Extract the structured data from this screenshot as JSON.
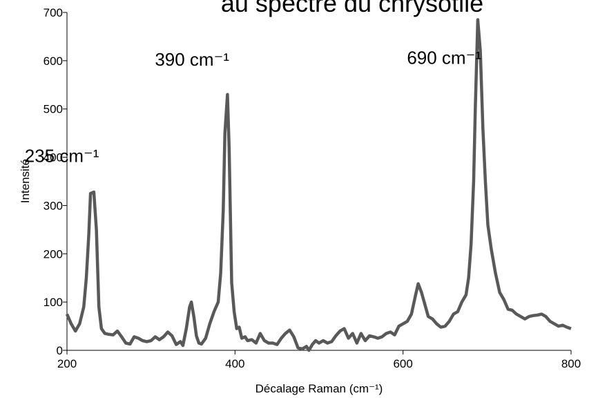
{
  "chart_data": {
    "type": "line",
    "title": "au spectre du chrysotile",
    "x_label": "Décalage Raman (cm⁻¹)",
    "y_label": "Intensité",
    "annotations": [
      {
        "text": "235 cm⁻¹",
        "x": 235,
        "y": 390
      },
      {
        "text": "390 cm⁻¹",
        "x": 390,
        "y": 590
      },
      {
        "text": "690 cm⁻¹",
        "x": 690,
        "y": 593
      }
    ],
    "xlim": [
      200,
      800
    ],
    "xticks": [
      200,
      400,
      600,
      800
    ],
    "ylim": [
      0,
      700
    ],
    "yticks": [
      0,
      100,
      200,
      300,
      400,
      500,
      600,
      700
    ],
    "x": [
      200,
      205,
      210,
      215,
      220,
      223,
      226,
      228,
      232,
      235,
      238,
      241,
      245,
      250,
      255,
      260,
      265,
      270,
      275,
      280,
      285,
      290,
      295,
      300,
      305,
      310,
      315,
      320,
      325,
      330,
      335,
      338,
      342,
      346,
      348,
      351,
      354,
      357,
      360,
      365,
      370,
      375,
      380,
      383,
      386,
      388,
      391,
      393,
      396,
      399,
      402,
      405,
      408,
      412,
      415,
      420,
      425,
      430,
      435,
      440,
      445,
      450,
      455,
      460,
      465,
      470,
      475,
      480,
      485,
      488,
      492,
      496,
      500,
      505,
      510,
      515,
      520,
      525,
      530,
      535,
      540,
      545,
      550,
      555,
      560,
      565,
      570,
      575,
      580,
      585,
      590,
      595,
      600,
      605,
      610,
      615,
      618,
      622,
      626,
      630,
      635,
      640,
      645,
      650,
      655,
      660,
      665,
      670,
      675,
      678,
      681,
      684,
      686,
      689,
      692,
      695,
      698,
      701,
      705,
      710,
      715,
      720,
      725,
      730,
      735,
      740,
      745,
      750,
      755,
      760,
      765,
      770,
      775,
      780,
      785,
      790,
      795,
      800
    ],
    "series": [
      {
        "name": "chrysotile",
        "color": "#595959",
        "values": [
          75,
          55,
          40,
          55,
          90,
          150,
          240,
          325,
          328,
          250,
          90,
          45,
          35,
          33,
          32,
          40,
          28,
          15,
          13,
          28,
          25,
          20,
          18,
          20,
          28,
          22,
          28,
          38,
          30,
          12,
          18,
          10,
          45,
          90,
          100,
          70,
          30,
          15,
          13,
          25,
          55,
          80,
          100,
          160,
          290,
          450,
          530,
          420,
          140,
          80,
          45,
          48,
          25,
          28,
          20,
          22,
          15,
          35,
          20,
          15,
          15,
          12,
          25,
          35,
          42,
          28,
          5,
          3,
          8,
          0,
          12,
          20,
          15,
          20,
          15,
          18,
          30,
          40,
          45,
          25,
          35,
          15,
          35,
          20,
          30,
          28,
          25,
          28,
          35,
          38,
          32,
          50,
          55,
          60,
          75,
          115,
          138,
          120,
          95,
          70,
          65,
          55,
          48,
          50,
          60,
          75,
          80,
          100,
          115,
          150,
          220,
          350,
          500,
          685,
          620,
          460,
          350,
          260,
          210,
          160,
          120,
          105,
          85,
          83,
          75,
          70,
          65,
          70,
          72,
          73,
          75,
          70,
          60,
          55,
          50,
          52,
          48,
          45
        ]
      }
    ]
  }
}
